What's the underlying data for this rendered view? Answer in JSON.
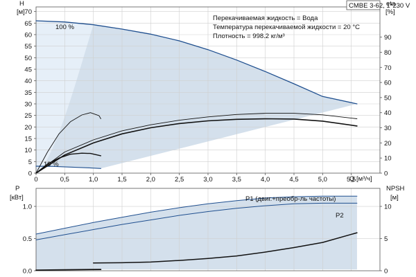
{
  "title_box": "CMBE 3-62, 1*230 V",
  "info_lines": [
    "Перекачиваемая жидкость = Вода",
    "Температура перекачиваемой жидкости = 20 °C",
    "Плотность = 998.2 кг/м³"
  ],
  "colors": {
    "shade": "#d4e0ec",
    "shade_light": "#e6eff8",
    "curve_blue": "#1f4f8f",
    "curve_black": "#111111"
  },
  "chart_data": [
    {
      "id": "qh",
      "type": "line",
      "x_label": "Q [м³/ч]",
      "x_ticks": [
        "0",
        "0,5",
        "1,0",
        "1,5",
        "2,0",
        "2,5",
        "3,0",
        "3,5",
        "4,0",
        "4,5",
        "5,0",
        "5,5"
      ],
      "xlim": [
        0,
        6
      ],
      "y_label_left": [
        "H",
        "[м]"
      ],
      "y_ticks_left": [
        "0",
        "5",
        "10",
        "15",
        "20",
        "25",
        "30",
        "35",
        "40",
        "45",
        "50",
        "55",
        "60",
        "65",
        "70"
      ],
      "ylim_left": [
        0,
        72
      ],
      "y_label_right": [
        "eta",
        "[%]"
      ],
      "y_ticks_right": [
        "0",
        "10",
        "20",
        "30",
        "40",
        "50",
        "60",
        "70",
        "80",
        "90"
      ],
      "ylim_right": [
        0,
        110
      ],
      "grid": true,
      "annotations": [
        "100 %",
        "19 %"
      ],
      "series": [
        {
          "axis": "left",
          "color": "#1f4f8f",
          "width": 1.3,
          "points": [
            [
              0,
              66
            ],
            [
              0.5,
              65.5
            ],
            [
              1.0,
              64.3
            ],
            [
              1.5,
              62.4
            ],
            [
              2.0,
              60.2
            ],
            [
              2.5,
              57.3
            ],
            [
              3.0,
              53.5
            ],
            [
              3.5,
              49.0
            ],
            [
              4.0,
              44.0
            ],
            [
              4.5,
              38.7
            ],
            [
              5.0,
              33.2
            ],
            [
              5.6,
              30
            ]
          ]
        },
        {
          "axis": "left",
          "color": "#1f4f8f",
          "width": 1.2,
          "points": [
            [
              0,
              3.0
            ],
            [
              0.3,
              2.9
            ],
            [
              0.6,
              2.6
            ],
            [
              0.9,
              2.3
            ],
            [
              1.13,
              2.0
            ]
          ]
        },
        {
          "axis": "right",
          "color": "#111111",
          "width": 1.6,
          "points": [
            [
              0,
              0
            ],
            [
              0.5,
              12
            ],
            [
              1.0,
              20
            ],
            [
              1.5,
              26
            ],
            [
              2.0,
              30
            ],
            [
              2.5,
              32.8
            ],
            [
              3.0,
              34.6
            ],
            [
              3.5,
              35.6
            ],
            [
              4.0,
              36
            ],
            [
              4.5,
              35.8
            ],
            [
              5.0,
              34.4
            ],
            [
              5.6,
              31.2
            ]
          ]
        },
        {
          "axis": "right",
          "color": "#111111",
          "width": 0.9,
          "points": [
            [
              0,
              0
            ],
            [
              0.5,
              14
            ],
            [
              1.0,
              22
            ],
            [
              1.5,
              28
            ],
            [
              2.0,
              32
            ],
            [
              2.5,
              35
            ],
            [
              3.0,
              37.2
            ],
            [
              3.5,
              38.8
            ],
            [
              4.0,
              39.6
            ],
            [
              4.5,
              39.6
            ],
            [
              5.0,
              38.6
            ],
            [
              5.6,
              36
            ]
          ]
        },
        {
          "axis": "right",
          "color": "#111111",
          "width": 0.9,
          "points": [
            [
              0,
              0
            ],
            [
              0.2,
              14
            ],
            [
              0.4,
              26
            ],
            [
              0.6,
              34
            ],
            [
              0.8,
              38.5
            ],
            [
              0.95,
              40
            ],
            [
              1.1,
              38
            ],
            [
              1.13,
              36
            ]
          ]
        },
        {
          "axis": "right",
          "color": "#111111",
          "width": 1.4,
          "points": [
            [
              0,
              0
            ],
            [
              0.2,
              6
            ],
            [
              0.4,
              10
            ],
            [
              0.6,
              12.5
            ],
            [
              0.8,
              13.2
            ],
            [
              0.95,
              13
            ],
            [
              1.13,
              11.5
            ]
          ]
        }
      ]
    },
    {
      "id": "power",
      "type": "line",
      "x_label": "",
      "x_ticks": [],
      "xlim": [
        0,
        6
      ],
      "y_label_left": [
        "P",
        "[кВт]"
      ],
      "y_ticks_left": [
        "0.0",
        "0.5",
        "1.0"
      ],
      "ylim_left": [
        0,
        1.28
      ],
      "y_label_right": [
        "NPSH",
        "[м]"
      ],
      "y_ticks_right": [
        "0",
        "5",
        "10"
      ],
      "ylim_right": [
        0,
        12.8
      ],
      "grid": true,
      "labels": [
        "P1 (двиг.+преобр-ль частоты)",
        "P2"
      ],
      "series": [
        {
          "axis": "left",
          "color": "#1f4f8f",
          "width": 1.0,
          "points": [
            [
              0,
              0.57
            ],
            [
              0.5,
              0.66
            ],
            [
              1.0,
              0.75
            ],
            [
              1.5,
              0.83
            ],
            [
              2.0,
              0.91
            ],
            [
              2.5,
              0.98
            ],
            [
              3.0,
              1.04
            ],
            [
              3.5,
              1.09
            ],
            [
              4.0,
              1.13
            ],
            [
              4.5,
              1.15
            ],
            [
              5.0,
              1.16
            ],
            [
              5.6,
              1.16
            ]
          ]
        },
        {
          "axis": "left",
          "color": "#1f4f8f",
          "width": 1.0,
          "points": [
            [
              0,
              0.48
            ],
            [
              0.5,
              0.56
            ],
            [
              1.0,
              0.64
            ],
            [
              1.5,
              0.72
            ],
            [
              2.0,
              0.79
            ],
            [
              2.5,
              0.86
            ],
            [
              3.0,
              0.92
            ],
            [
              3.5,
              0.97
            ],
            [
              4.0,
              1.01
            ],
            [
              4.5,
              1.04
            ],
            [
              5.0,
              1.05
            ],
            [
              5.6,
              1.05
            ]
          ]
        },
        {
          "axis": "right",
          "color": "#111111",
          "width": 1.5,
          "points": [
            [
              1.0,
              1.2
            ],
            [
              1.5,
              1.25
            ],
            [
              2.0,
              1.35
            ],
            [
              2.5,
              1.6
            ],
            [
              3.0,
              1.9
            ],
            [
              3.5,
              2.3
            ],
            [
              4.0,
              2.9
            ],
            [
              4.5,
              3.6
            ],
            [
              5.0,
              4.4
            ],
            [
              5.6,
              5.9
            ]
          ]
        },
        {
          "axis": "right",
          "color": "#111111",
          "width": 1.8,
          "points": [
            [
              0,
              0.1
            ],
            [
              0.5,
              0.15
            ],
            [
              1.13,
              0.2
            ]
          ]
        }
      ]
    }
  ]
}
